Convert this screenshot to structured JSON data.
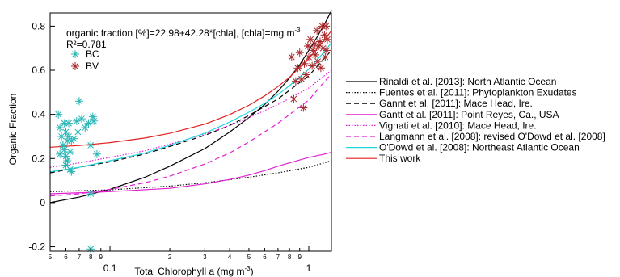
{
  "chart_data": {
    "type": "scatter",
    "x_scale": "log",
    "xlim": [
      0.05,
      1.3
    ],
    "ylim": [
      -0.22,
      0.86
    ],
    "xlabel": "Total Chlorophyll a (mg m",
    "xlabel_sup": "-3",
    "xlabel_end": ")",
    "ylabel": "Organic Fraction",
    "y_ticks": [
      -0.2,
      0,
      0.2,
      0.4,
      0.6,
      0.8
    ],
    "y_tick_labels": [
      "-0.2",
      "0",
      "0.2",
      "0.4",
      "0.6",
      "0.8"
    ],
    "x_major_ticks": [
      0.1,
      1
    ],
    "x_major_labels": [
      "0.1",
      "1"
    ],
    "x_minor_ticks": [
      0.05,
      0.06,
      0.07,
      0.08,
      0.09,
      0.2,
      0.3,
      0.4,
      0.5,
      0.6,
      0.7,
      0.8,
      0.9
    ],
    "x_minor_labels": [
      "5",
      "6",
      "7",
      "8",
      "9",
      "2",
      "3",
      "4",
      "5",
      "6",
      "7",
      "8",
      "9"
    ],
    "equation": "organic fraction [%]=22.98+42.28*[chla], [chla]=mg m",
    "equation_sup": "-3",
    "r2": "R²=0.781",
    "scatter_legend": [
      "BC",
      "BV"
    ],
    "scatter_series": [
      {
        "name": "BC",
        "color": "#2ab5b5",
        "points": [
          [
            0.055,
            0.4
          ],
          [
            0.056,
            0.34
          ],
          [
            0.056,
            0.22
          ],
          [
            0.057,
            0.3
          ],
          [
            0.058,
            0.26
          ],
          [
            0.059,
            0.36
          ],
          [
            0.059,
            0.24
          ],
          [
            0.06,
            0.17
          ],
          [
            0.06,
            0.32
          ],
          [
            0.06,
            0.21
          ],
          [
            0.061,
            0.28
          ],
          [
            0.061,
            0.19
          ],
          [
            0.062,
            0.3
          ],
          [
            0.062,
            0.36
          ],
          [
            0.063,
            0.23
          ],
          [
            0.063,
            0.15
          ],
          [
            0.064,
            0.28
          ],
          [
            0.066,
            0.29
          ],
          [
            0.068,
            0.37
          ],
          [
            0.069,
            0.32
          ],
          [
            0.07,
            0.46
          ],
          [
            0.072,
            0.38
          ],
          [
            0.075,
            0.34
          ],
          [
            0.078,
            0.36
          ],
          [
            0.08,
            0.26
          ],
          [
            0.082,
            0.39
          ],
          [
            0.083,
            0.37
          ],
          [
            0.086,
            0.22
          ],
          [
            0.08,
            0.04
          ],
          [
            0.08,
            -0.21
          ],
          [
            0.064,
            0.14
          ],
          [
            0.058,
            0.26
          ]
        ]
      },
      {
        "name": "BV",
        "color": "#a8282a",
        "points": [
          [
            0.82,
            0.66
          ],
          [
            0.84,
            0.47
          ],
          [
            0.86,
            0.55
          ],
          [
            0.88,
            0.61
          ],
          [
            0.9,
            0.68
          ],
          [
            0.92,
            0.56
          ],
          [
            0.94,
            0.43
          ],
          [
            0.95,
            0.63
          ],
          [
            0.97,
            0.58
          ],
          [
            0.99,
            0.71
          ],
          [
            1.0,
            0.66
          ],
          [
            1.02,
            0.74
          ],
          [
            1.04,
            0.62
          ],
          [
            1.05,
            0.69
          ],
          [
            1.07,
            0.72
          ],
          [
            1.08,
            0.67
          ],
          [
            1.1,
            0.78
          ],
          [
            1.11,
            0.64
          ],
          [
            1.12,
            0.71
          ],
          [
            1.14,
            0.73
          ],
          [
            1.15,
            0.61
          ],
          [
            1.17,
            0.8
          ],
          [
            1.18,
            0.7
          ],
          [
            1.2,
            0.76
          ],
          [
            1.21,
            0.66
          ],
          [
            1.22,
            0.8
          ],
          [
            1.23,
            0.69
          ],
          [
            1.24,
            0.74
          ]
        ]
      }
    ],
    "line_series": [
      {
        "name": "Rinaldi et al. [2013]: North Atlantic Ocean",
        "color": "#000000",
        "dash": "",
        "x": [
          0.05,
          0.07,
          0.1,
          0.15,
          0.2,
          0.3,
          0.4,
          0.5,
          0.6,
          0.7,
          0.8,
          0.9,
          1.0,
          1.1,
          1.2,
          1.3
        ],
        "y": [
          0.0,
          0.025,
          0.06,
          0.115,
          0.165,
          0.245,
          0.32,
          0.385,
          0.445,
          0.505,
          0.565,
          0.625,
          0.69,
          0.75,
          0.81,
          0.87
        ]
      },
      {
        "name": "Fuentes et al. [2011]: Phytoplankton Exudates",
        "color": "#000000",
        "dash": "1.5 2",
        "x": [
          0.05,
          0.1,
          0.2,
          0.3,
          0.5,
          0.7,
          1.0,
          1.3
        ],
        "y": [
          0.05,
          0.058,
          0.075,
          0.09,
          0.115,
          0.135,
          0.16,
          0.19
        ]
      },
      {
        "name": "Gannt et al. [2011]: Mace Head, Ire.",
        "color": "#000000",
        "dash": "6 4",
        "x": [
          0.05,
          0.07,
          0.1,
          0.15,
          0.2,
          0.3,
          0.4,
          0.5,
          0.7,
          1.0,
          1.3
        ],
        "y": [
          0.135,
          0.16,
          0.185,
          0.22,
          0.255,
          0.305,
          0.35,
          0.395,
          0.47,
          0.575,
          0.69
        ]
      },
      {
        "name": "Gantt et al. [2011]: Point Reyes, Ca., USA",
        "color": "#e020d0",
        "dash": "",
        "x": [
          0.05,
          0.1,
          0.2,
          0.3,
          0.4,
          0.5,
          0.6,
          0.7,
          0.8,
          1.0,
          1.2,
          1.3
        ],
        "y": [
          0.04,
          0.05,
          0.065,
          0.085,
          0.105,
          0.125,
          0.145,
          0.165,
          0.18,
          0.205,
          0.22,
          0.228
        ]
      },
      {
        "name": "Vignati et al. [2010]: Mace Head, Ire.",
        "color": "#e020d0",
        "dash": "1.5 2",
        "x": [
          0.05,
          0.07,
          0.1,
          0.15,
          0.2,
          0.3,
          0.4,
          0.5,
          0.7,
          1.0,
          1.3
        ],
        "y": [
          0.16,
          0.18,
          0.205,
          0.235,
          0.265,
          0.31,
          0.35,
          0.385,
          0.445,
          0.52,
          0.6
        ]
      },
      {
        "name": "Langmann et al. [2008]: revised O'Dowd et al. [2008]",
        "color": "#e020d0",
        "dash": "6 4",
        "x": [
          0.05,
          0.07,
          0.1,
          0.15,
          0.2,
          0.3,
          0.4,
          0.5,
          0.7,
          1.0,
          1.3
        ],
        "y": [
          0.03,
          0.04,
          0.06,
          0.09,
          0.12,
          0.175,
          0.225,
          0.275,
          0.36,
          0.465,
          0.585
        ]
      },
      {
        "name": "O'Dowd et al. [2008]: Northeast Atlantic Ocean",
        "color": "#20d8e0",
        "dash": "",
        "x": [
          0.05,
          0.07,
          0.1,
          0.15,
          0.2,
          0.3,
          0.4,
          0.5,
          0.6,
          0.7,
          0.8,
          1.0,
          1.2,
          1.3
        ],
        "y": [
          0.14,
          0.16,
          0.19,
          0.225,
          0.26,
          0.315,
          0.365,
          0.41,
          0.45,
          0.49,
          0.53,
          0.605,
          0.685,
          0.725
        ]
      },
      {
        "name": "This work",
        "color": "#e02020",
        "dash": "",
        "x": [
          0.05,
          0.07,
          0.1,
          0.15,
          0.2,
          0.3,
          0.4,
          0.5,
          0.6,
          0.7,
          0.8,
          1.0,
          1.2,
          1.3
        ],
        "y": [
          0.251,
          0.259,
          0.272,
          0.293,
          0.314,
          0.356,
          0.399,
          0.441,
          0.484,
          0.526,
          0.568,
          0.653,
          0.737,
          0.78
        ]
      }
    ]
  }
}
